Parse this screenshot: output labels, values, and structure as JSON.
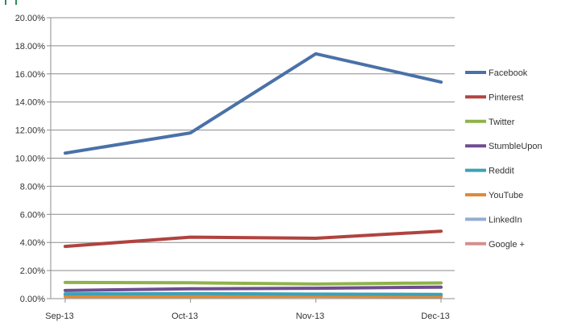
{
  "chart_data": {
    "type": "line",
    "title": "",
    "xlabel": "",
    "ylabel": "",
    "categories": [
      "Sep-13",
      "Oct-13",
      "Nov-13",
      "Dec-13"
    ],
    "ylim": [
      0,
      0.2
    ],
    "yticks": [
      "0.00%",
      "2.00%",
      "4.00%",
      "6.00%",
      "8.00%",
      "10.00%",
      "12.00%",
      "14.00%",
      "16.00%",
      "18.00%",
      "20.00%"
    ],
    "grid": "horizontal",
    "legend_position": "right",
    "series": [
      {
        "name": "Facebook",
        "color": "#4a71a8",
        "values": [
          0.1036,
          0.118,
          0.1743,
          0.1542
        ]
      },
      {
        "name": "Pinterest",
        "color": "#b0433f",
        "values": [
          0.0372,
          0.0438,
          0.043,
          0.048
        ]
      },
      {
        "name": "Twitter",
        "color": "#8fb24a",
        "values": [
          0.0115,
          0.0113,
          0.0104,
          0.0112
        ]
      },
      {
        "name": "StumbleUpon",
        "color": "#704d91",
        "values": [
          0.0058,
          0.007,
          0.0074,
          0.0082
        ]
      },
      {
        "name": "Reddit",
        "color": "#3da1b8",
        "values": [
          0.0034,
          0.0036,
          0.0032,
          0.003
        ]
      },
      {
        "name": "YouTube",
        "color": "#e08a36",
        "values": [
          0.0015,
          0.0015,
          0.0016,
          0.0014
        ]
      },
      {
        "name": "LinkedIn",
        "color": "#94acd4",
        "values": [
          0.0024,
          0.0024,
          0.0023,
          0.0022
        ]
      },
      {
        "name": "Google +",
        "color": "#d58f8c",
        "values": [
          0.003,
          0.003,
          0.0028,
          0.0026
        ]
      }
    ]
  }
}
